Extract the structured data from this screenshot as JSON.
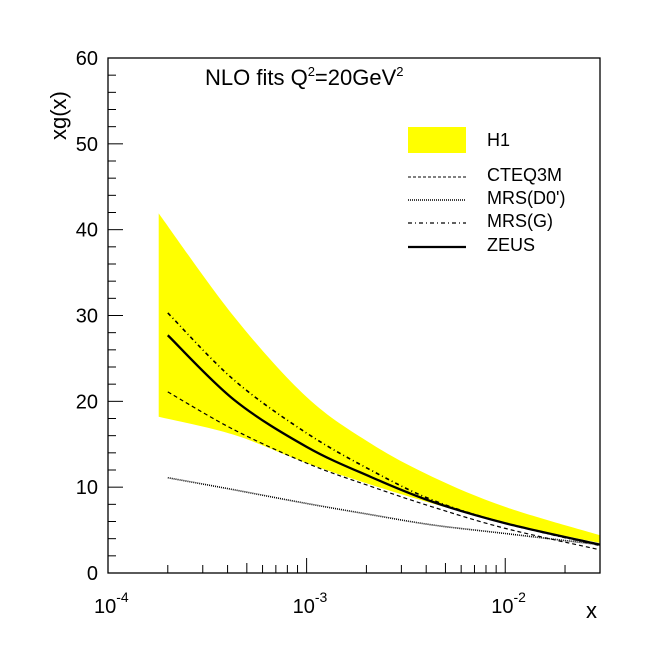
{
  "chart_data": {
    "type": "line",
    "title_parts": [
      "NLO fits  Q",
      "2",
      "=20GeV",
      "2"
    ],
    "xlabel": "x",
    "ylabel": "xg(x)",
    "xscale": "log",
    "xlim": [
      0.0001,
      0.03
    ],
    "ylim": [
      0,
      60
    ],
    "y_ticks": [
      0,
      10,
      20,
      30,
      40,
      50,
      60
    ],
    "x_ticks": [
      {
        "value": 0.0001,
        "base": "10",
        "exp": "-4"
      },
      {
        "value": 0.001,
        "base": "10",
        "exp": "-3"
      },
      {
        "value": 0.01,
        "base": "10",
        "exp": "-2"
      }
    ],
    "legend_position": "top-right",
    "band": {
      "name": "H1",
      "color": "#ffff00",
      "x": [
        0.00018,
        0.00043,
        0.001,
        0.0021,
        0.0043,
        0.01,
        0.03
      ],
      "upper": [
        41.9,
        29.9,
        20.5,
        15.1,
        11.2,
        7.7,
        4.4
      ],
      "lower": [
        18.2,
        16.1,
        12.8,
        10.3,
        8.1,
        5.8,
        3.5
      ]
    },
    "x": [
      0.0002,
      0.00043,
      0.001,
      0.0021,
      0.0043,
      0.01,
      0.03
    ],
    "series": [
      {
        "name": "CTEQ3M",
        "style": "dashed",
        "values": [
          21.1,
          16.7,
          12.8,
          10.1,
          7.7,
          5.2,
          2.7
        ]
      },
      {
        "name": "MRS(D0')",
        "style": "dotted",
        "values": [
          11.1,
          9.7,
          8.1,
          6.8,
          5.6,
          4.6,
          3.3
        ]
      },
      {
        "name": "MRS(G)",
        "style": "dash-dot",
        "values": [
          30.3,
          22.5,
          16.3,
          12.0,
          8.5,
          5.8,
          3.2
        ]
      },
      {
        "name": "ZEUS",
        "style": "solid",
        "values": [
          27.7,
          20.2,
          14.7,
          11.2,
          8.3,
          5.8,
          3.3
        ]
      }
    ]
  }
}
